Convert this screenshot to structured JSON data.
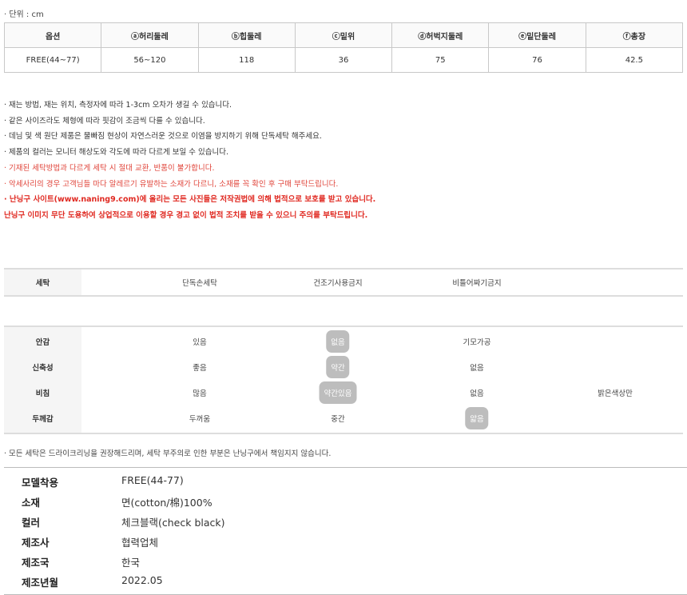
{
  "unit": "· 단위 : cm",
  "size_table": {
    "headers": [
      "옵션",
      "ⓐ허리둘레",
      "ⓑ힙둘레",
      "ⓒ밑위",
      "ⓓ허벅지둘레",
      "ⓔ밑단둘레",
      "ⓕ총장"
    ],
    "rows": [
      [
        "FREE(44~77)",
        "56~120",
        "118",
        "36",
        "75",
        "76",
        "42.5"
      ]
    ]
  },
  "notes": [
    "· 재는 방법, 재는 위치, 측정자에 따라 1-3cm 오차가 생길 수 있습니다.",
    "· 같은 사이즈라도 체형에 따라 핏감이 조금씩 다를 수 있습니다.",
    "· 데님 및 색 원단 제품은 물빠짐 현상이 자연스러운 것으로 이염을 방지하기 위해 단독세탁 해주세요.",
    "· 제품의 컬러는 모니터 해상도와 각도에 따라 다르게 보일 수 있습니다.",
    "· 기재된 세탁방법과 다르게 세탁 시 절대 교환, 반품이 불가합니다.",
    "· 악세사리의 경우 고객님들 마다 알레르기 유발하는 소재가 다르니, 소재를 꼭 확인 후 구매 부탁드립니다.",
    "· 난닝구 사이트(www.naning9.com)에 올리는 모든 사진들은 저작권법에 의해 법적으로 보호를 받고 있습니다.",
    "난닝구 이미지 무단 도용하여 상업적으로 이용할 경우 경고 없이 법적 조치를 받을 수 있으니 주의를 부탁드립니다."
  ],
  "washing": {
    "label": "세탁",
    "items": [
      "단독손세탁",
      "건조기사용금지",
      "비틀어짜기금지"
    ]
  },
  "attributes": [
    {
      "label": "안감",
      "options": [
        "있음",
        "없음",
        "기모가공"
      ],
      "selected": 1
    },
    {
      "label": "신축성",
      "options": [
        "좋음",
        "약간",
        "없음"
      ],
      "selected": 1
    },
    {
      "label": "비침",
      "options": [
        "많음",
        "약간있음",
        "없음",
        "밝은색상만"
      ],
      "selected": 1
    },
    {
      "label": "두께감",
      "options": [
        "두꺼움",
        "중간",
        "얇음"
      ],
      "selected": 2
    }
  ],
  "highlight_color": "#bdbdbd",
  "note_bottom": "· 모든 세탁은 드라이크리닝을 권장해드리며, 세탁 부주의로 인한 부분은 난닝구에서 책임지지 않습니다.",
  "spec": [
    {
      "k": "모델착용",
      "v": "FREE(44-77)"
    },
    {
      "k": "소재",
      "v": "면(cotton/棉)100%"
    },
    {
      "k": "컬러",
      "v": "체크블랙(check black)"
    },
    {
      "k": "제조사",
      "v": "협력업체"
    },
    {
      "k": "제조국",
      "v": "한국"
    },
    {
      "k": "제조년월",
      "v": "2022.05"
    }
  ]
}
